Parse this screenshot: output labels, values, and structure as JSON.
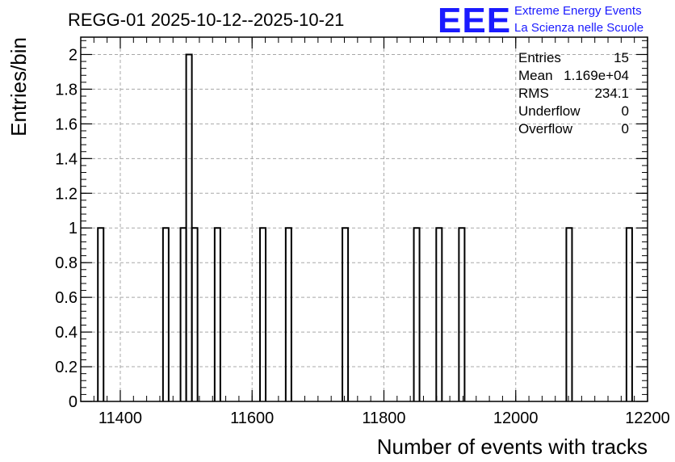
{
  "chart_data": {
    "type": "bar",
    "title": "REGG-01 2025-10-12--2025-10-21",
    "xlabel": "Number of events with tracks",
    "ylabel": "Entries/bin",
    "xlim": [
      11340,
      12200
    ],
    "ylim": [
      0,
      2.1
    ],
    "bin_width": 8.6,
    "grid": true,
    "x_ticks": [
      11400,
      11600,
      11800,
      12000,
      12200
    ],
    "x_tick_labels": [
      "11400",
      "11600",
      "11800",
      "12000",
      "12200"
    ],
    "y_ticks": [
      0,
      0.2,
      0.4,
      0.6,
      0.8,
      1,
      1.2,
      1.4,
      1.6,
      1.8,
      2
    ],
    "y_tick_labels": [
      "0",
      "0.2",
      "0.4",
      "0.6",
      "0.8",
      "1",
      "1.2",
      "1.4",
      "1.6",
      "1.8",
      "2"
    ],
    "bins": [
      {
        "x": 11366.0,
        "count": 1
      },
      {
        "x": 11464.8,
        "count": 1
      },
      {
        "x": 11491.4,
        "count": 1
      },
      {
        "x": 11500.0,
        "count": 2
      },
      {
        "x": 11508.6,
        "count": 1
      },
      {
        "x": 11543.2,
        "count": 1
      },
      {
        "x": 11612.0,
        "count": 1
      },
      {
        "x": 11651.0,
        "count": 1
      },
      {
        "x": 11737.0,
        "count": 1
      },
      {
        "x": 11845.4,
        "count": 1
      },
      {
        "x": 11879.4,
        "count": 1
      },
      {
        "x": 11913.8,
        "count": 1
      },
      {
        "x": 12076.8,
        "count": 1
      },
      {
        "x": 12168.0,
        "count": 1
      }
    ],
    "stats": {
      "entries_label": "Entries",
      "entries_value": "15",
      "mean_label": "Mean",
      "mean_value": "1.169e+04",
      "rms_label": "RMS",
      "rms_value": "234.1",
      "underflow_label": "Underflow",
      "underflow_value": "0",
      "overflow_label": "Overflow",
      "overflow_value": "0"
    }
  },
  "logo": {
    "mark": "EEE",
    "line1": "Extreme Energy Events",
    "line2": "La Scienza nelle Scuole",
    "color": "#1a1aff"
  }
}
